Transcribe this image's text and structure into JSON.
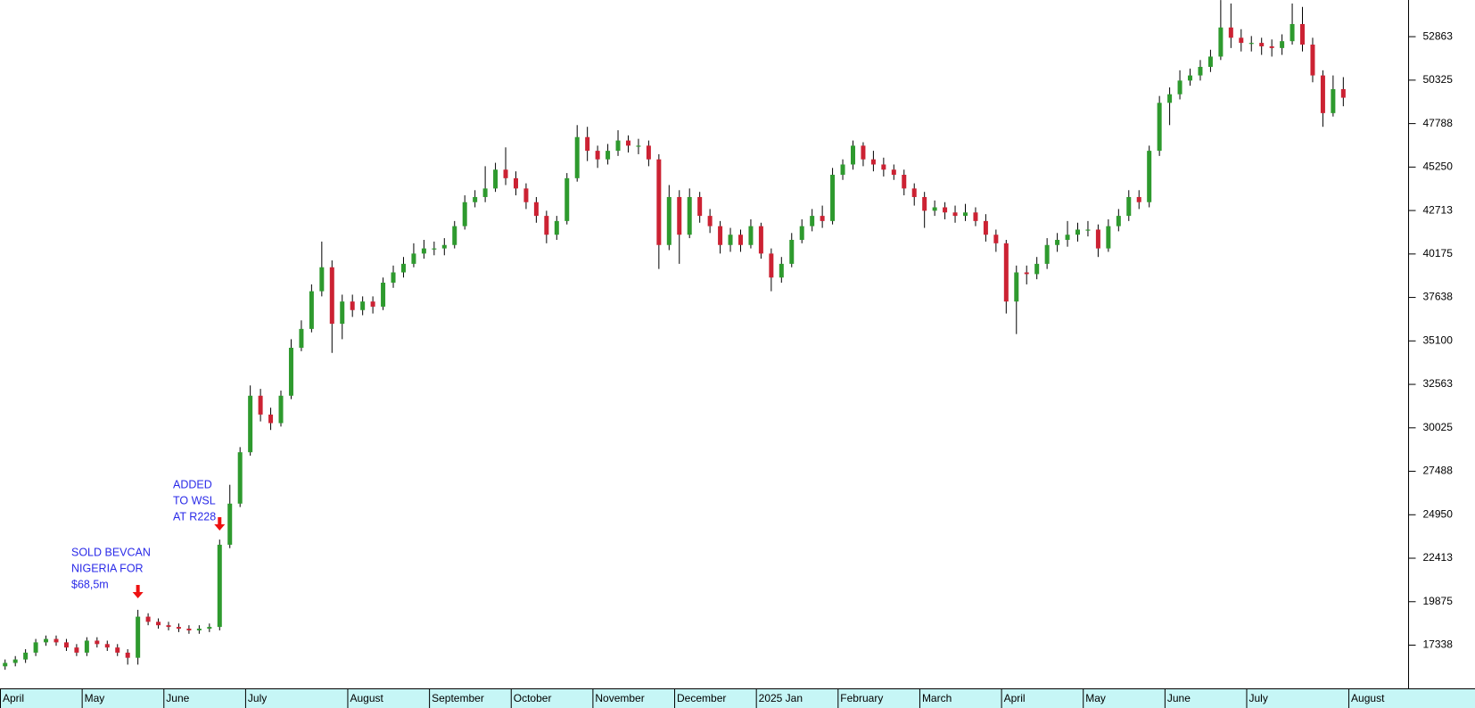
{
  "chart_data": {
    "type": "candlestick",
    "categories": [
      "April",
      null,
      null,
      null,
      null,
      null,
      null,
      null,
      "May",
      null,
      null,
      null,
      null,
      null,
      null,
      null,
      "June",
      null,
      null,
      null,
      null,
      null,
      null,
      null,
      "July",
      null,
      null,
      null,
      null,
      null,
      null,
      null,
      null,
      null,
      "August",
      null,
      null,
      null,
      null,
      null,
      null,
      null,
      "September",
      null,
      null,
      null,
      null,
      null,
      null,
      null,
      "October",
      null,
      null,
      null,
      null,
      null,
      null,
      null,
      "November",
      null,
      null,
      null,
      null,
      null,
      null,
      null,
      "December",
      null,
      null,
      null,
      null,
      null,
      null,
      null,
      "2025 Jan",
      null,
      null,
      null,
      null,
      null,
      null,
      null,
      "February",
      null,
      null,
      null,
      null,
      null,
      null,
      null,
      "March",
      null,
      null,
      null,
      null,
      null,
      null,
      null,
      "April",
      null,
      null,
      null,
      null,
      null,
      null,
      null,
      "May",
      null,
      null,
      null,
      null,
      null,
      null,
      null,
      "June",
      null,
      null,
      null,
      null,
      null,
      null,
      null,
      "July",
      null,
      null,
      null,
      null,
      null,
      null,
      null,
      null,
      null,
      "August"
    ],
    "open": [
      16100,
      16300,
      16500,
      16900,
      17500,
      17700,
      17500,
      17200,
      16900,
      17600,
      17400,
      17200,
      16900,
      16600,
      19000,
      18700,
      18500,
      18400,
      18300,
      18200,
      18300,
      18400,
      23200,
      25600,
      28600,
      31900,
      30800,
      30300,
      31900,
      34700,
      35800,
      38000,
      39400,
      36100,
      37400,
      36900,
      37400,
      37100,
      38500,
      39100,
      39600,
      40200,
      40500,
      40500,
      40700,
      41800,
      43200,
      43500,
      44000,
      45100,
      44600,
      44000,
      43200,
      42400,
      41300,
      42100,
      44600,
      47000,
      46200,
      45700,
      46200,
      46800,
      46500,
      46500,
      45700,
      40700,
      43500,
      41300,
      43500,
      42400,
      41800,
      40700,
      41300,
      40700,
      41800,
      40200,
      38800,
      39600,
      41000,
      41800,
      42400,
      42100,
      44800,
      45400,
      46500,
      45700,
      45400,
      45100,
      44800,
      44000,
      43500,
      42700,
      42900,
      42600,
      42400,
      42600,
      42100,
      41300,
      40800,
      37400,
      39100,
      39000,
      39600,
      40700,
      41000,
      41300,
      41600,
      41600,
      40500,
      41800,
      42400,
      43500,
      43200,
      46200,
      49000,
      49500,
      50300,
      50600,
      51100,
      51700,
      53400,
      52800,
      52500,
      52500,
      52300,
      52200,
      52600,
      53600,
      52400,
      50600,
      48400,
      49800,
      null
    ],
    "high": [
      16500,
      16700,
      17100,
      17700,
      17900,
      17900,
      17700,
      17400,
      17800,
      17800,
      17600,
      17400,
      17100,
      19400,
      19200,
      18900,
      18700,
      18600,
      18500,
      18500,
      18600,
      23500,
      26700,
      28900,
      32500,
      32300,
      31200,
      32200,
      35200,
      36300,
      38400,
      40900,
      39800,
      37800,
      37800,
      37700,
      37700,
      38800,
      39500,
      40000,
      40800,
      41000,
      40900,
      41100,
      42100,
      43600,
      43900,
      45300,
      45500,
      46400,
      45000,
      44300,
      43500,
      42700,
      42400,
      44900,
      47700,
      47600,
      46500,
      46600,
      47400,
      47100,
      46900,
      46800,
      46000,
      44200,
      43900,
      44000,
      43800,
      42800,
      42100,
      41700,
      41600,
      42200,
      42000,
      40500,
      40000,
      41400,
      42200,
      42800,
      43000,
      45200,
      45700,
      46800,
      46700,
      46200,
      45800,
      45400,
      45100,
      44300,
      43800,
      43300,
      43200,
      43000,
      43100,
      42900,
      42500,
      41600,
      41000,
      39500,
      39500,
      40000,
      41100,
      41400,
      42100,
      42000,
      42100,
      41900,
      42200,
      42800,
      43900,
      43900,
      46500,
      49400,
      49900,
      50900,
      51000,
      51500,
      52100,
      55000,
      54800,
      53300,
      52900,
      52800,
      52700,
      53000,
      54800,
      54600,
      52800,
      50900,
      50600,
      50500,
      null
    ],
    "low": [
      15900,
      16100,
      16300,
      16700,
      17300,
      17300,
      17000,
      16700,
      16700,
      17200,
      17000,
      16700,
      16200,
      16200,
      18500,
      18300,
      18200,
      18100,
      18000,
      18000,
      18100,
      18200,
      23000,
      25400,
      28400,
      30400,
      29900,
      30100,
      31700,
      34500,
      35600,
      37700,
      34400,
      35200,
      36500,
      36600,
      36700,
      36900,
      38200,
      38800,
      39400,
      39900,
      40100,
      40100,
      40500,
      41600,
      42900,
      43200,
      43800,
      44200,
      43600,
      42800,
      42000,
      40800,
      41000,
      41900,
      44400,
      45600,
      45200,
      45400,
      45900,
      46100,
      46000,
      45300,
      39300,
      40400,
      39600,
      41100,
      42000,
      41400,
      40200,
      40300,
      40300,
      40500,
      39900,
      38000,
      38500,
      39400,
      40800,
      41500,
      41700,
      41900,
      44500,
      45100,
      45300,
      45000,
      44700,
      44500,
      43600,
      43000,
      41700,
      42400,
      42200,
      42000,
      42100,
      41800,
      40900,
      40300,
      36700,
      35500,
      38400,
      38700,
      39300,
      40300,
      40600,
      40900,
      41200,
      40000,
      40300,
      41500,
      42100,
      42800,
      42900,
      45900,
      47700,
      49200,
      50000,
      50300,
      50800,
      51500,
      52200,
      52000,
      52000,
      51800,
      51700,
      51800,
      52400,
      52000,
      50200,
      47600,
      48200,
      48800,
      null
    ],
    "close": [
      16300,
      16500,
      16900,
      17500,
      17700,
      17500,
      17200,
      16900,
      17600,
      17400,
      17200,
      16900,
      16600,
      19000,
      18700,
      18500,
      18400,
      18300,
      18200,
      18300,
      18400,
      23200,
      25600,
      28600,
      31900,
      30800,
      30300,
      31900,
      34700,
      35800,
      38000,
      39400,
      36100,
      37400,
      36900,
      37400,
      37100,
      38500,
      39100,
      39600,
      40200,
      40500,
      40500,
      40700,
      41800,
      43200,
      43500,
      44000,
      45100,
      44600,
      44000,
      43200,
      42400,
      41300,
      42100,
      44600,
      47000,
      46200,
      45700,
      46200,
      46800,
      46500,
      46500,
      45700,
      40700,
      43500,
      41300,
      43500,
      42400,
      41800,
      40700,
      41300,
      40700,
      41800,
      40200,
      38800,
      39600,
      41000,
      41800,
      42400,
      42100,
      44800,
      45400,
      46500,
      45700,
      45400,
      45100,
      44800,
      44000,
      43500,
      42700,
      42900,
      42600,
      42400,
      42600,
      42100,
      41300,
      40800,
      37400,
      39100,
      39000,
      39600,
      40700,
      41000,
      41300,
      41600,
      41600,
      40500,
      41800,
      42400,
      43500,
      43200,
      46200,
      49000,
      49500,
      50300,
      50600,
      51100,
      51700,
      53400,
      52800,
      52500,
      52500,
      52300,
      52200,
      52600,
      53600,
      52400,
      50600,
      48400,
      49800,
      49300,
      null
    ],
    "up_color": "#2e9a2e",
    "down_color": "#cc2233",
    "ylim": [
      14813,
      55004
    ],
    "yticks": [
      17338,
      19875,
      22413,
      24950,
      27488,
      30025,
      32563,
      35100,
      37638,
      40175,
      42713,
      45250,
      47788,
      50325,
      52863
    ],
    "annotations": [
      {
        "lines": [
          "SOLD BEVCAN",
          "NIGERIA FOR",
          "$68,5m"
        ]
      },
      {
        "lines": [
          "ADDED",
          "TO WSL",
          "AT R228"
        ]
      }
    ]
  }
}
